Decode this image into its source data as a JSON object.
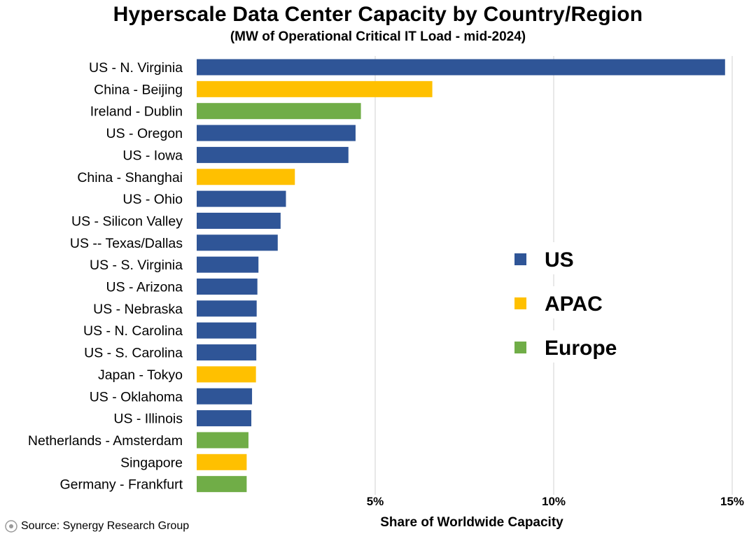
{
  "title": "Hyperscale Data Center Capacity by Country/Region",
  "subtitle": "(MW of Operational Critical IT Load - mid-2024)",
  "source": "Source: Synergy Research Group",
  "colors": {
    "US": "#2f5597",
    "APAC": "#ffc000",
    "Europe": "#70ad47",
    "grid": "#d9d9d9"
  },
  "chart_data": {
    "type": "bar",
    "orientation": "horizontal",
    "title": "Hyperscale Data Center Capacity by Country/Region",
    "subtitle": "(MW of Operational Critical IT Load - mid-2024)",
    "xlabel": "Share of Worldwide Capacity",
    "ylabel": "",
    "xlim": [
      0,
      15
    ],
    "xticks": [
      5,
      10,
      15
    ],
    "xtick_labels": [
      "5%",
      "10%",
      "15%"
    ],
    "grid": "vertical",
    "legend_position": "right-middle",
    "legend": [
      "US",
      "APAC",
      "Europe"
    ],
    "categories": [
      "US - N. Virginia",
      "China - Beijing",
      "Ireland - Dublin",
      "US - Oregon",
      "US - Iowa",
      "China - Shanghai",
      "US - Ohio",
      "US - Silicon Valley",
      "US -- Texas/Dallas",
      "US - S. Virginia",
      "US - Arizona",
      "US - Nebraska",
      "US - N. Carolina",
      "US - S. Carolina",
      "Japan - Tokyo",
      "US - Oklahoma",
      "US - Illinois",
      "Netherlands - Amsterdam",
      "Singapore",
      "Germany - Frankfurt"
    ],
    "values": [
      14.8,
      6.6,
      4.6,
      4.45,
      4.25,
      2.75,
      2.5,
      2.35,
      2.27,
      1.73,
      1.7,
      1.68,
      1.67,
      1.67,
      1.66,
      1.55,
      1.53,
      1.45,
      1.4,
      1.4
    ],
    "groups": [
      "US",
      "APAC",
      "Europe",
      "US",
      "US",
      "APAC",
      "US",
      "US",
      "US",
      "US",
      "US",
      "US",
      "US",
      "US",
      "APAC",
      "US",
      "US",
      "Europe",
      "APAC",
      "Europe"
    ]
  }
}
